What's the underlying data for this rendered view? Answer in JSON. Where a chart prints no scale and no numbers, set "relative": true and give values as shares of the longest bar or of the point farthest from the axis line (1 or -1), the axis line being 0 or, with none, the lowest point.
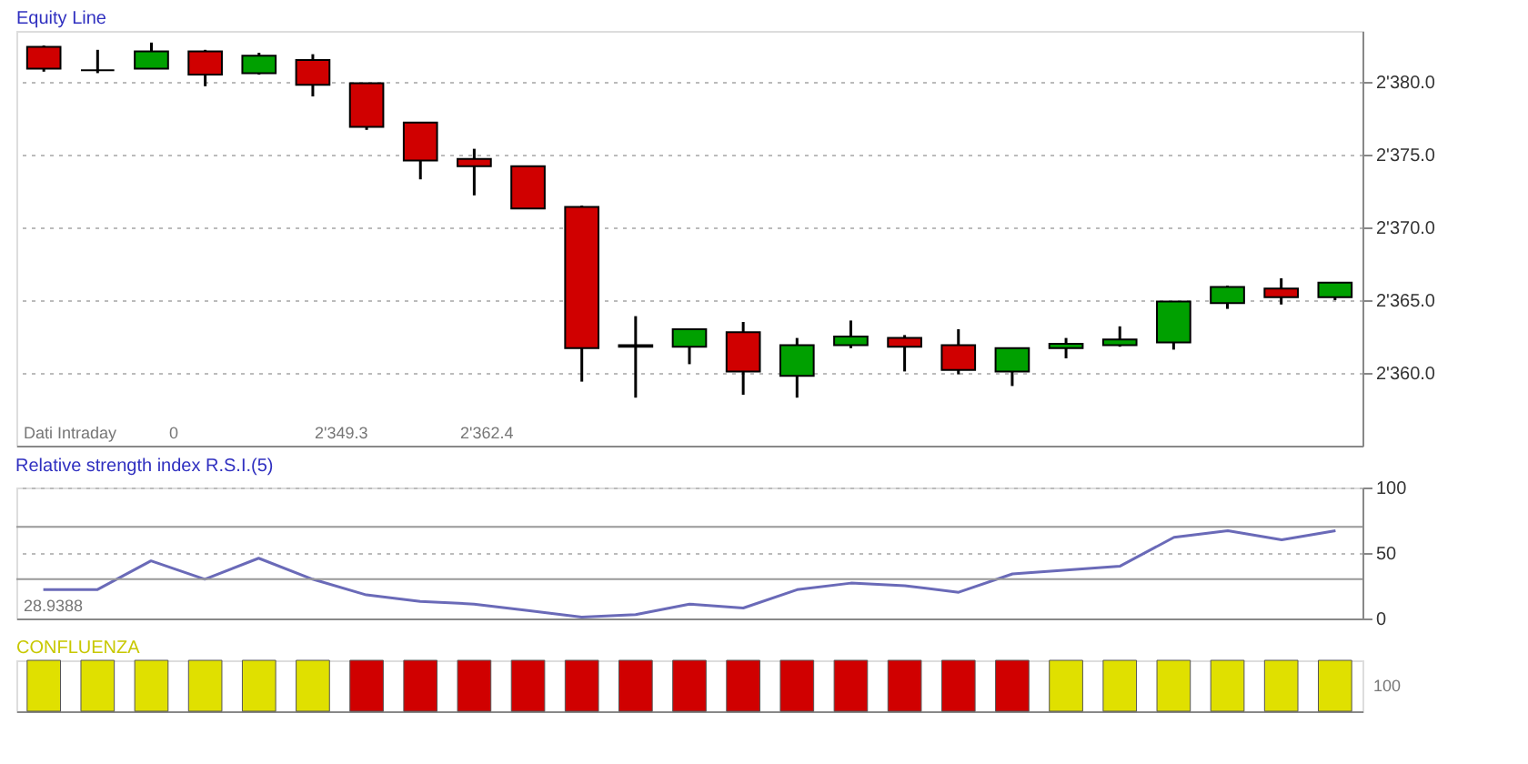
{
  "chart_data": [
    {
      "type": "candlestick",
      "title": "Equity Line",
      "categories": [
        null,
        null,
        null,
        null,
        null,
        null,
        null,
        null,
        null,
        null,
        null,
        null,
        null,
        null,
        null,
        null,
        null,
        null,
        null,
        null,
        null,
        null,
        null,
        null,
        null
      ],
      "ohlc": [
        [
          2382.4,
          2382.5,
          2380.7,
          2380.9
        ],
        [
          2380.8,
          2382.2,
          2380.6,
          2380.8
        ],
        [
          2380.9,
          2382.7,
          2380.9,
          2382.1
        ],
        [
          2382.1,
          2382.2,
          2379.7,
          2380.5
        ],
        [
          2380.6,
          2382.0,
          2380.5,
          2381.8
        ],
        [
          2381.5,
          2381.9,
          2379.0,
          2379.8
        ],
        [
          2379.9,
          2379.9,
          2376.7,
          2376.9
        ],
        [
          2377.2,
          2377.2,
          2373.3,
          2374.6
        ],
        [
          2374.7,
          2375.4,
          2372.2,
          2374.2
        ],
        [
          2374.2,
          2374.2,
          2371.3,
          2371.3
        ],
        [
          2371.4,
          2371.5,
          2359.4,
          2361.7
        ],
        [
          2361.8,
          2363.9,
          2358.3,
          2361.9
        ],
        [
          2361.8,
          2363.0,
          2360.6,
          2363.0
        ],
        [
          2362.8,
          2363.5,
          2358.5,
          2360.1
        ],
        [
          2359.8,
          2362.4,
          2358.3,
          2361.9
        ],
        [
          2361.9,
          2363.6,
          2361.7,
          2362.5
        ],
        [
          2362.4,
          2362.6,
          2360.1,
          2361.8
        ],
        [
          2361.9,
          2363.0,
          2359.9,
          2360.2
        ],
        [
          2360.1,
          2361.7,
          2359.1,
          2361.7
        ],
        [
          2361.7,
          2362.4,
          2361.0,
          2362.0
        ],
        [
          2361.9,
          2363.2,
          2361.8,
          2362.3
        ],
        [
          2362.1,
          2364.9,
          2361.6,
          2364.9
        ],
        [
          2364.8,
          2366.0,
          2364.4,
          2365.9
        ],
        [
          2365.8,
          2366.5,
          2364.7,
          2365.2
        ],
        [
          2365.2,
          2366.2,
          2365.0,
          2366.2
        ]
      ],
      "colors": [
        "#d00000",
        "#000000",
        "#00a000",
        "#d00000",
        "#00a000",
        "#d00000",
        "#d00000",
        "#d00000",
        "#d00000",
        "#d00000",
        "#d00000",
        "#000000",
        "#00a000",
        "#d00000",
        "#00a000",
        "#00a000",
        "#d00000",
        "#d00000",
        "#00a000",
        "#00a000",
        "#00a000",
        "#00a000",
        "#00a000",
        "#d00000",
        "#00a000"
      ],
      "ylim": [
        2355,
        2383.5
      ],
      "yticks": [
        {
          "value": 2360,
          "label": "2'360.0"
        },
        {
          "value": 2365,
          "label": "2'365.0"
        },
        {
          "value": 2370,
          "label": "2'370.0"
        },
        {
          "value": 2375,
          "label": "2'375.0"
        },
        {
          "value": 2380,
          "label": "2'380.0"
        }
      ],
      "grid": "y",
      "tick_labels": "y",
      "annotations": [
        "Dati Intraday",
        "0",
        "2'349.3",
        "2'362.4"
      ]
    },
    {
      "type": "line",
      "title": "Relative strength index R.S.I.(5)",
      "categories": [
        null,
        null,
        null,
        null,
        null,
        null,
        null,
        null,
        null,
        null,
        null,
        null,
        null,
        null,
        null,
        null,
        null,
        null,
        null,
        null,
        null,
        null,
        null,
        null,
        null
      ],
      "series": [
        {
          "color": "#6a6ab8",
          "values": [
            22,
            22,
            44,
            30,
            46,
            30,
            18,
            13,
            11,
            6,
            1,
            3,
            11,
            8,
            22,
            27,
            25,
            20,
            34,
            37,
            40,
            62,
            67,
            60,
            67
          ]
        }
      ],
      "ylim": [
        0,
        100
      ],
      "yticks": [
        0,
        50,
        100
      ],
      "grid": "y",
      "tick_labels": "y",
      "ref_lines": [
        {
          "axis": "y",
          "value": 30
        },
        {
          "axis": "y",
          "value": 70
        }
      ],
      "annotations": [
        "28.9388"
      ]
    },
    {
      "type": "bar",
      "title": "CONFLUENZA",
      "relative": true,
      "categories": [
        null,
        null,
        null,
        null,
        null,
        null,
        null,
        null,
        null,
        null,
        null,
        null,
        null,
        null,
        null,
        null,
        null,
        null,
        null,
        null,
        null,
        null,
        null,
        null,
        null
      ],
      "values": [
        1,
        1,
        1,
        1,
        1,
        1,
        1,
        1,
        1,
        1,
        1,
        1,
        1,
        1,
        1,
        1,
        1,
        1,
        1,
        1,
        1,
        1,
        1,
        1,
        1
      ],
      "colors": [
        "#e0e000",
        "#e0e000",
        "#e0e000",
        "#e0e000",
        "#e0e000",
        "#e0e000",
        "#d00000",
        "#d00000",
        "#d00000",
        "#d00000",
        "#d00000",
        "#d00000",
        "#d00000",
        "#d00000",
        "#d00000",
        "#d00000",
        "#d00000",
        "#d00000",
        "#d00000",
        "#e0e000",
        "#e0e000",
        "#e0e000",
        "#e0e000",
        "#e0e000",
        "#e0e000"
      ],
      "tick_labels": false,
      "annotations": [
        "100"
      ]
    }
  ]
}
